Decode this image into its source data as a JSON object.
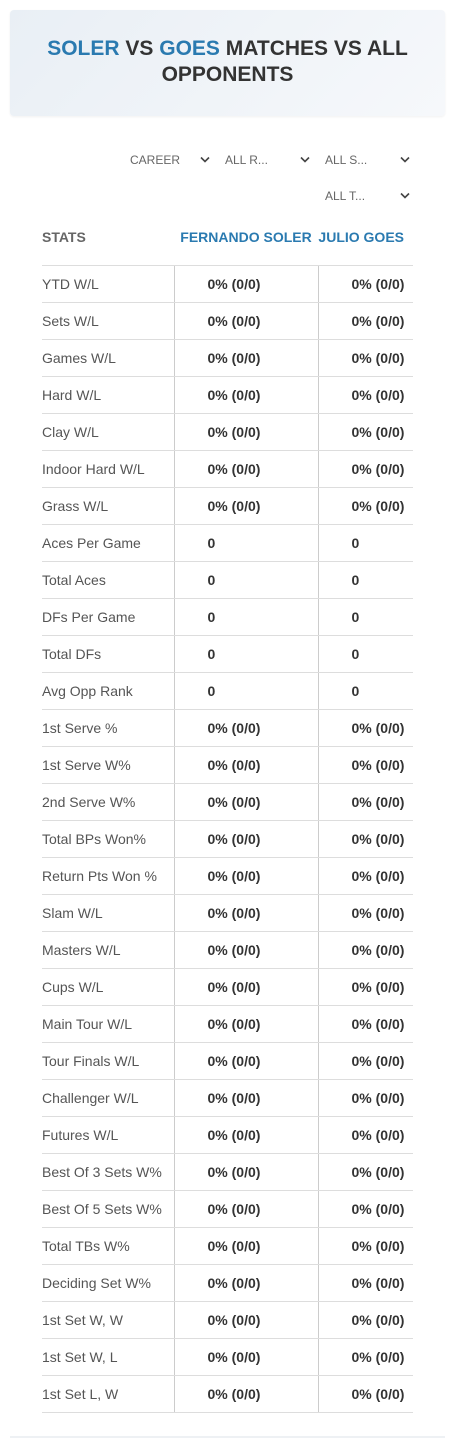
{
  "header": {
    "name1": "SOLER",
    "vs": "VS",
    "name2": "GOES",
    "rest": "MATCHES VS ALL OPPONENTS"
  },
  "filters": [
    "CAREER",
    "ALL R...",
    "ALL S...",
    "ALL T..."
  ],
  "table": {
    "columns": [
      "STATS",
      "FERNANDO SOLER",
      "JULIO GOES"
    ],
    "rows": [
      [
        "YTD W/L",
        "0% (0/0)",
        "0% (0/0)"
      ],
      [
        "Sets W/L",
        "0% (0/0)",
        "0% (0/0)"
      ],
      [
        "Games W/L",
        "0% (0/0)",
        "0% (0/0)"
      ],
      [
        "Hard W/L",
        "0% (0/0)",
        "0% (0/0)"
      ],
      [
        "Clay W/L",
        "0% (0/0)",
        "0% (0/0)"
      ],
      [
        "Indoor Hard W/L",
        "0% (0/0)",
        "0% (0/0)"
      ],
      [
        "Grass W/L",
        "0% (0/0)",
        "0% (0/0)"
      ],
      [
        "Aces Per Game",
        "0",
        "0"
      ],
      [
        "Total Aces",
        "0",
        "0"
      ],
      [
        "DFs Per Game",
        "0",
        "0"
      ],
      [
        "Total DFs",
        "0",
        "0"
      ],
      [
        "Avg Opp Rank",
        "0",
        "0"
      ],
      [
        "1st Serve %",
        "0% (0/0)",
        "0% (0/0)"
      ],
      [
        "1st Serve W%",
        "0% (0/0)",
        "0% (0/0)"
      ],
      [
        "2nd Serve W%",
        "0% (0/0)",
        "0% (0/0)"
      ],
      [
        "Total BPs Won%",
        "0% (0/0)",
        "0% (0/0)"
      ],
      [
        "Return Pts Won %",
        "0% (0/0)",
        "0% (0/0)"
      ],
      [
        "Slam W/L",
        "0% (0/0)",
        "0% (0/0)"
      ],
      [
        "Masters W/L",
        "0% (0/0)",
        "0% (0/0)"
      ],
      [
        "Cups W/L",
        "0% (0/0)",
        "0% (0/0)"
      ],
      [
        "Main Tour W/L",
        "0% (0/0)",
        "0% (0/0)"
      ],
      [
        "Tour Finals W/L",
        "0% (0/0)",
        "0% (0/0)"
      ],
      [
        "Challenger W/L",
        "0% (0/0)",
        "0% (0/0)"
      ],
      [
        "Futures W/L",
        "0% (0/0)",
        "0% (0/0)"
      ],
      [
        "Best Of 3 Sets W%",
        "0% (0/0)",
        "0% (0/0)"
      ],
      [
        "Best Of 5 Sets W%",
        "0% (0/0)",
        "0% (0/0)"
      ],
      [
        "Total TBs W%",
        "0% (0/0)",
        "0% (0/0)"
      ],
      [
        "Deciding Set W%",
        "0% (0/0)",
        "0% (0/0)"
      ],
      [
        "1st Set W, W",
        "0% (0/0)",
        "0% (0/0)"
      ],
      [
        "1st Set W, L",
        "0% (0/0)",
        "0% (0/0)"
      ],
      [
        "1st Set L, W",
        "0% (0/0)",
        "0% (0/0)"
      ]
    ]
  }
}
